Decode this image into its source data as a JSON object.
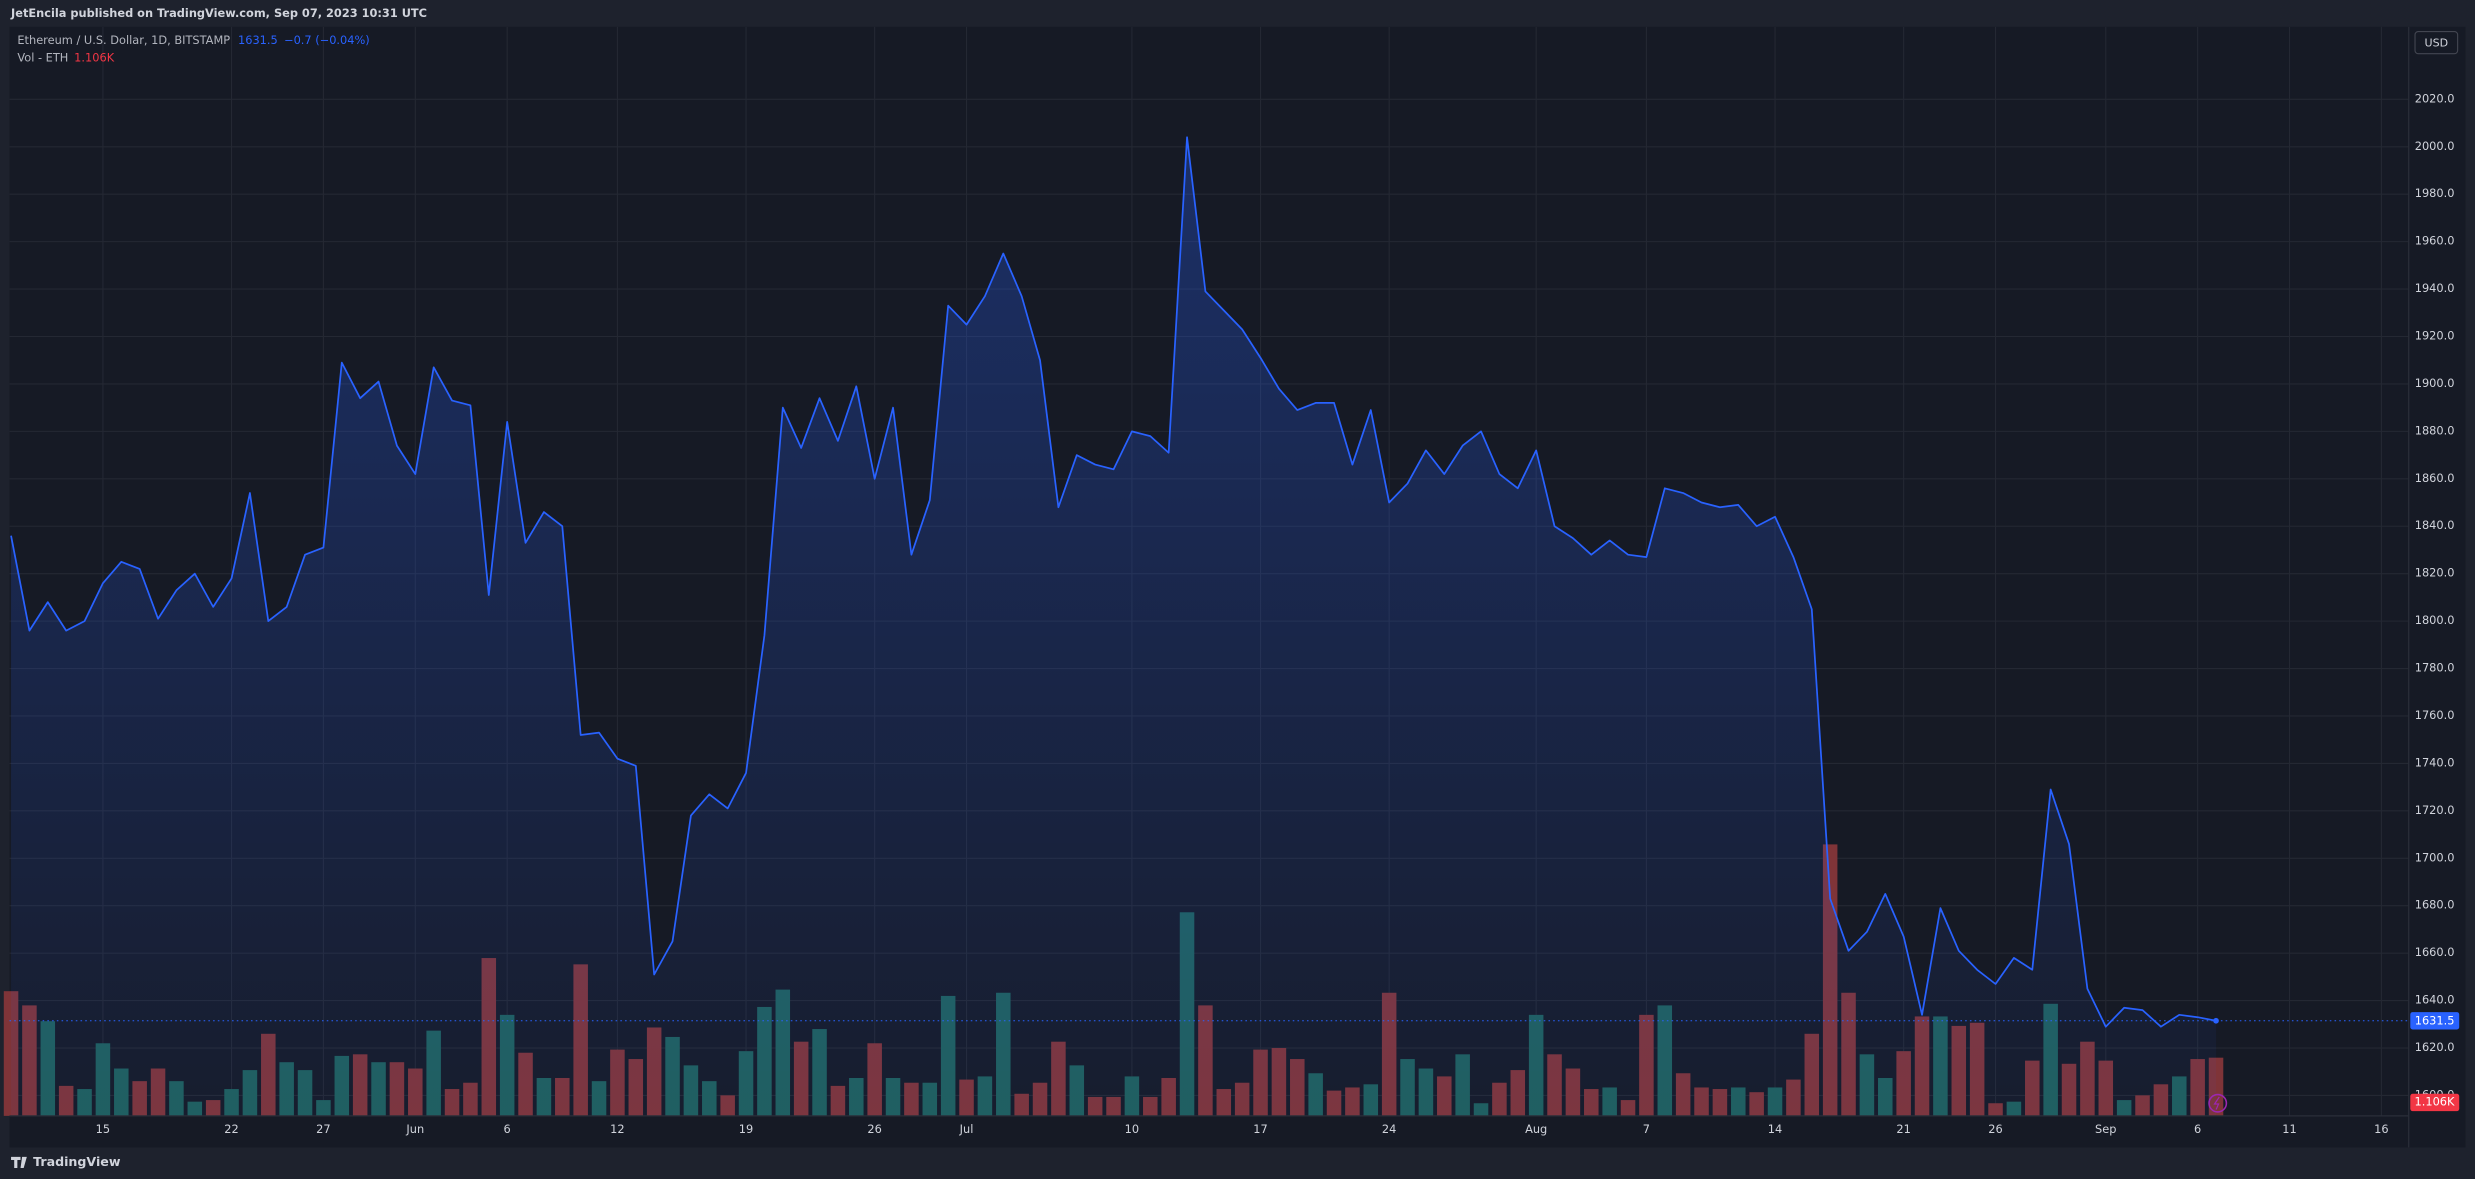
{
  "header": {
    "publisher": "JetEncila published on TradingView.com, Sep 07, 2023 10:31 UTC",
    "currency": "USD",
    "footer": "TradingView"
  },
  "chart_data": {
    "type": "line",
    "series": [
      {
        "name": "Ethereum / U.S. Dollar, 1D, BITSTAMP",
        "color": "#2962ff",
        "change": "−0.7 (−0.04%)",
        "values": [
          1836,
          1796,
          1808,
          1796,
          1800,
          1816,
          1825,
          1822,
          1801,
          1813,
          1820,
          1806,
          1818,
          1854,
          1800,
          1806,
          1828,
          1831,
          1909,
          1894,
          1901,
          1874,
          1862,
          1907,
          1893,
          1891,
          1811,
          1884,
          1833,
          1846,
          1840,
          1752,
          1753,
          1742,
          1739,
          1651,
          1665,
          1718,
          1727,
          1721,
          1736,
          1794,
          1890,
          1873,
          1894,
          1876,
          1899,
          1860,
          1890,
          1828,
          1851,
          1933,
          1925,
          1937,
          1955,
          1937,
          1910,
          1848,
          1870,
          1866,
          1864,
          1880,
          1878,
          1871,
          2004,
          1939,
          1931,
          1923,
          1911,
          1898,
          1889,
          1892,
          1892,
          1866,
          1889,
          1850,
          1858,
          1872,
          1862,
          1874,
          1880,
          1862,
          1856,
          1872,
          1840,
          1835,
          1828,
          1834,
          1828,
          1827,
          1856,
          1854,
          1850,
          1848,
          1849,
          1840,
          1844,
          1827,
          1805,
          1683,
          1661,
          1669,
          1685,
          1667,
          1634,
          1679,
          1661,
          1653,
          1647,
          1658,
          1653,
          1729,
          1706,
          1645,
          1629,
          1637,
          1636,
          1629,
          1634,
          1633,
          1631.5
        ]
      }
    ],
    "volume": {
      "name": "Vol - ETH",
      "up_color": "#1f5f5b",
      "down_color": "#7f3438",
      "ylim": [
        0,
        20670
      ],
      "values": [
        2370,
        2100,
        1800,
        570,
        510,
        1380,
        900,
        660,
        900,
        660,
        270,
        300,
        510,
        870,
        1560,
        1020,
        870,
        300,
        1140,
        1170,
        1020,
        1020,
        900,
        1620,
        510,
        630,
        3000,
        1920,
        1200,
        720,
        720,
        2880,
        660,
        1260,
        1080,
        1680,
        1500,
        960,
        660,
        390,
        1230,
        2070,
        2400,
        1410,
        1650,
        570,
        720,
        1380,
        720,
        630,
        630,
        2280,
        690,
        750,
        2340,
        420,
        630,
        1410,
        960,
        360,
        360,
        750,
        360,
        720,
        3870,
        2100,
        510,
        630,
        1260,
        1290,
        1080,
        810,
        480,
        540,
        600,
        2340,
        1080,
        900,
        750,
        1170,
        240,
        630,
        870,
        1920,
        1170,
        900,
        510,
        540,
        300,
        1920,
        2100,
        810,
        540,
        510,
        540,
        450,
        540,
        690,
        1560,
        5160,
        2340,
        1170,
        720,
        1230,
        1890,
        1890,
        1710,
        1770,
        240,
        270,
        1050,
        2130,
        990,
        1410,
        1050,
        300,
        390,
        600,
        750,
        1080,
        1106
      ],
      "value_labels": [
        null,
        null,
        null,
        null,
        null,
        null,
        null,
        null,
        null,
        null,
        null,
        null,
        null,
        null,
        null,
        null,
        null,
        null,
        null,
        null,
        null,
        null,
        null,
        null,
        null,
        null,
        null,
        null,
        null,
        null,
        null,
        null,
        null,
        null,
        null,
        null,
        null,
        null,
        null,
        null,
        null,
        null,
        null,
        null,
        null,
        null,
        null,
        null,
        null,
        null,
        null,
        null,
        null,
        null,
        null,
        null,
        null,
        null,
        null,
        null,
        null,
        null,
        null,
        null,
        null,
        null,
        null,
        null,
        null,
        null,
        null,
        null,
        null,
        null,
        null,
        null,
        null,
        null,
        null,
        null,
        null,
        null,
        null,
        null,
        null,
        null,
        null,
        null,
        null,
        null,
        null,
        null,
        null,
        null,
        null,
        null,
        null,
        null,
        null,
        null,
        null,
        null,
        null,
        null,
        null,
        null,
        null,
        null,
        null,
        null,
        null,
        null,
        null,
        null,
        null,
        null,
        null,
        null,
        null,
        null,
        "1.106K"
      ]
    },
    "xlim": [
      0,
      130.4
    ],
    "xticks": [
      {
        "value": 5,
        "label": "15"
      },
      {
        "value": 12,
        "label": "22"
      },
      {
        "value": 17,
        "label": "27"
      },
      {
        "value": 22,
        "label": "Jun"
      },
      {
        "value": 27,
        "label": "6"
      },
      {
        "value": 33,
        "label": "12"
      },
      {
        "value": 40,
        "label": "19"
      },
      {
        "value": 47,
        "label": "26"
      },
      {
        "value": 52,
        "label": "Jul"
      },
      {
        "value": 61,
        "label": "10"
      },
      {
        "value": 68,
        "label": "17"
      },
      {
        "value": 75,
        "label": "24"
      },
      {
        "value": 83,
        "label": "Aug"
      },
      {
        "value": 89,
        "label": "7"
      },
      {
        "value": 96,
        "label": "14"
      },
      {
        "value": 103,
        "label": "21"
      },
      {
        "value": 108,
        "label": "26"
      },
      {
        "value": 114,
        "label": "Sep"
      },
      {
        "value": 119,
        "label": "6"
      },
      {
        "value": 124,
        "label": "11"
      },
      {
        "value": 129,
        "label": "16"
      }
    ],
    "ylim": [
      1591.4,
      2049.9
    ],
    "yticks": [
      {
        "value": 1600,
        "label": "1600.0"
      },
      {
        "value": 1620,
        "label": "1620.0"
      },
      {
        "value": 1640,
        "label": "1640.0"
      },
      {
        "value": 1660,
        "label": "1660.0"
      },
      {
        "value": 1680,
        "label": "1680.0"
      },
      {
        "value": 1700,
        "label": "1700.0"
      },
      {
        "value": 1720,
        "label": "1720.0"
      },
      {
        "value": 1740,
        "label": "1740.0"
      },
      {
        "value": 1760,
        "label": "1760.0"
      },
      {
        "value": 1780,
        "label": "1780.0"
      },
      {
        "value": 1800,
        "label": "1800.0"
      },
      {
        "value": 1820,
        "label": "1820.0"
      },
      {
        "value": 1840,
        "label": "1840.0"
      },
      {
        "value": 1860,
        "label": "1860.0"
      },
      {
        "value": 1880,
        "label": "1880.0"
      },
      {
        "value": 1900,
        "label": "1900.0"
      },
      {
        "value": 1920,
        "label": "1920.0"
      },
      {
        "value": 1940,
        "label": "1940.0"
      },
      {
        "value": 1960,
        "label": "1960.0"
      },
      {
        "value": 1980,
        "label": "1980.0"
      },
      {
        "value": 2000,
        "label": "2000.0"
      },
      {
        "value": 2020,
        "label": "2020.0"
      }
    ],
    "grid": true
  }
}
